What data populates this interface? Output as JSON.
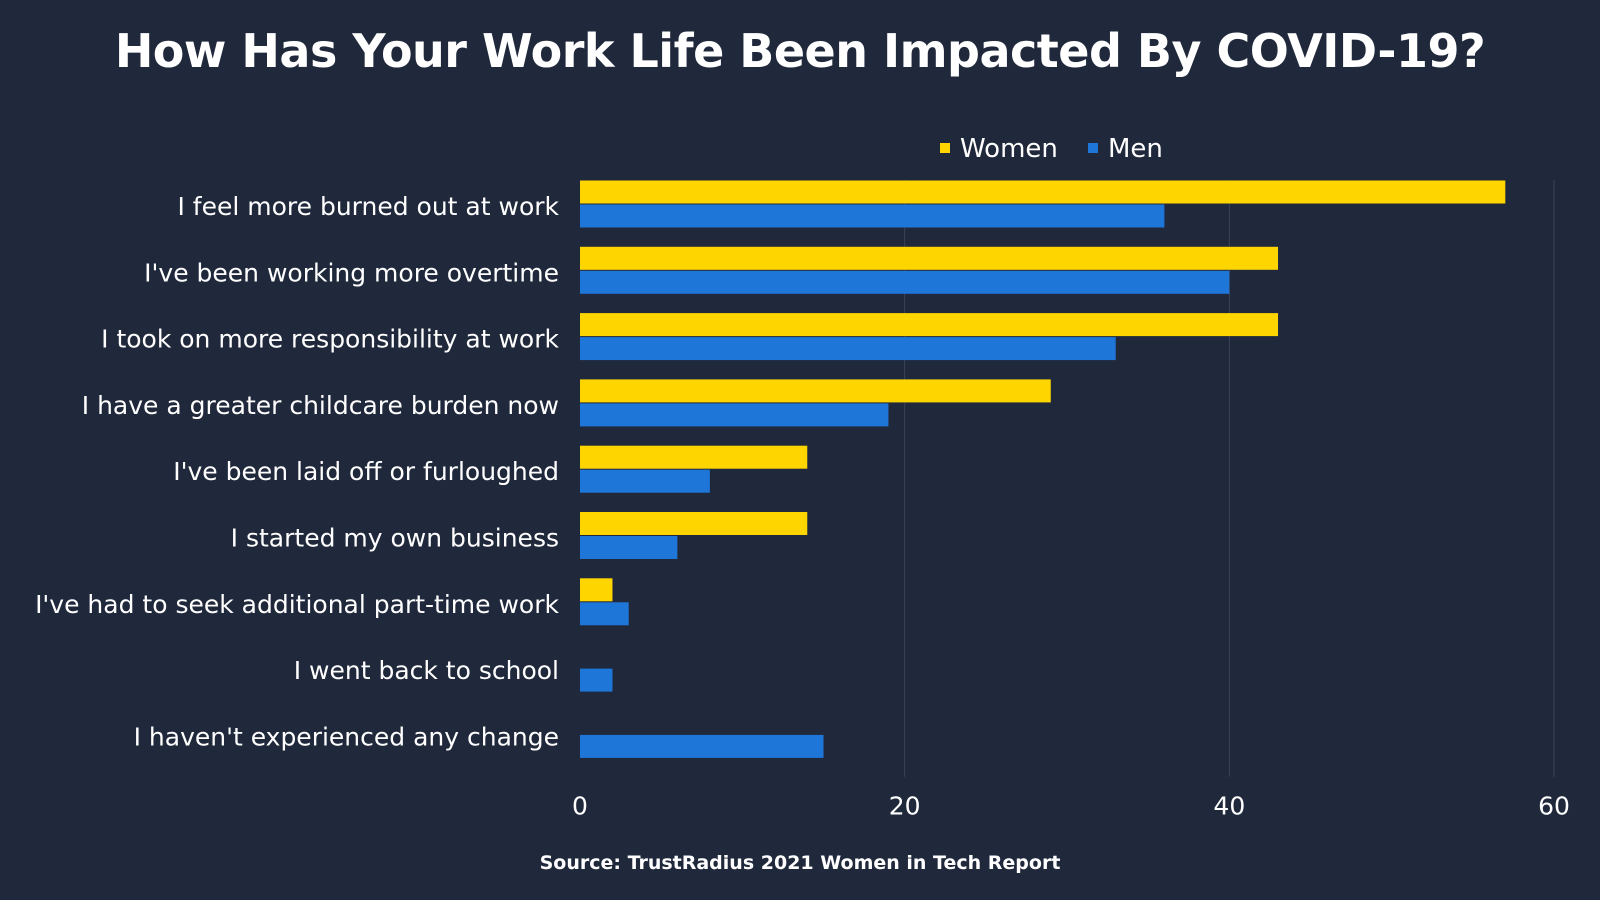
{
  "title": "How Has Your Work Life Been Impacted By COVID-19?",
  "source": "Source: TrustRadius 2021 Women in Tech Report",
  "colors": {
    "background": "#20283b",
    "women": "#ffd500",
    "men": "#1f76d9",
    "gridline": "#3b4358",
    "text": "#ffffff"
  },
  "chart_data": {
    "type": "bar",
    "orientation": "horizontal",
    "categories": [
      "I feel more burned out at work",
      "I've been working more overtime",
      "I took on more responsibility at work",
      "I have a greater childcare burden now",
      "I've been laid off or furloughed",
      "I started my own business",
      "I've had to seek additional part-time work",
      "I went back to school",
      "I haven't experienced any change"
    ],
    "series": [
      {
        "name": "Women",
        "color": "#ffd500",
        "values": [
          57,
          43,
          43,
          29,
          14,
          14,
          2,
          0,
          0
        ]
      },
      {
        "name": "Men",
        "color": "#1f76d9",
        "values": [
          36,
          40,
          33,
          19,
          8,
          6,
          3,
          2,
          15
        ]
      }
    ],
    "xlim": [
      0,
      60
    ],
    "xticks": [
      "0",
      "20",
      "40",
      "60"
    ],
    "grid": true,
    "legend_position": "top"
  }
}
